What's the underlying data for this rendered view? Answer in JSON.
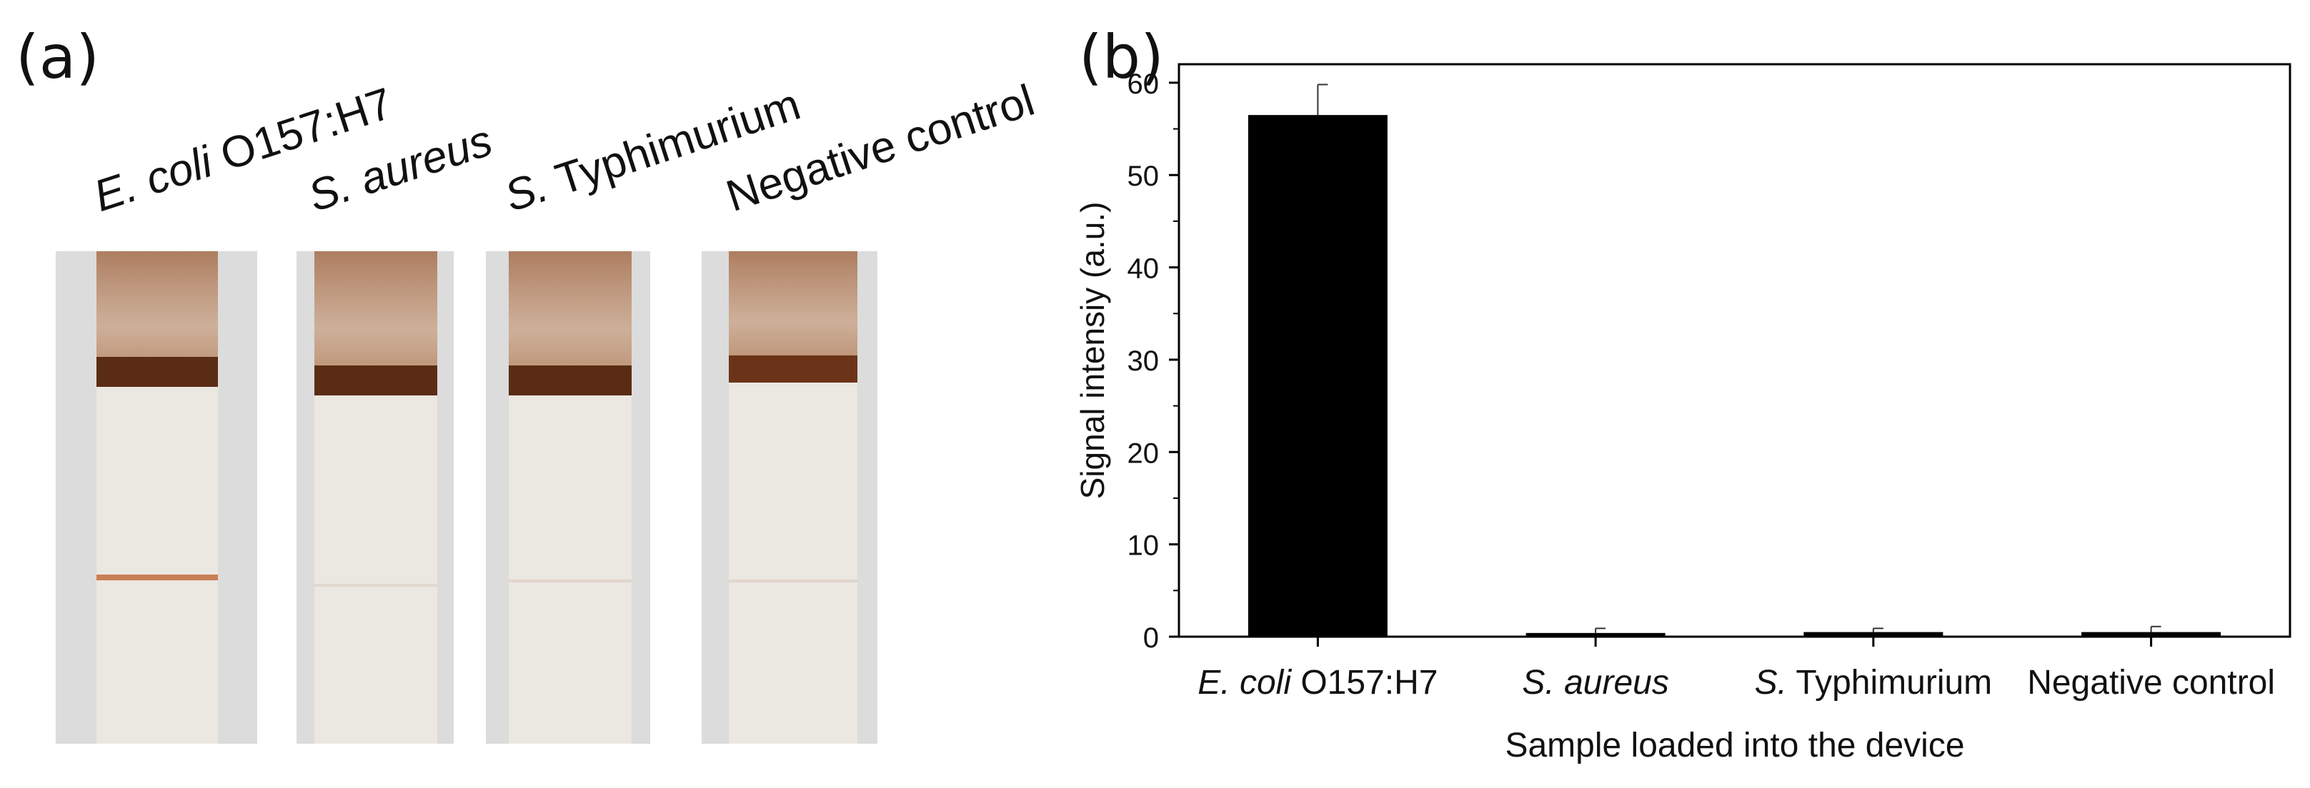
{
  "panels": {
    "a_label": "(a)",
    "b_label": "(b)"
  },
  "strips": {
    "labels": [
      {
        "italic": "E. coli",
        "rest": " O157:H7",
        "has_test_line": true
      },
      {
        "italic": "S. aureus",
        "rest": "",
        "has_test_line": false
      },
      {
        "italic": "S.",
        "rest": " Typhimurium",
        "has_test_line": false
      },
      {
        "italic": "",
        "rest": "Negative control",
        "has_test_line": false
      }
    ]
  },
  "chart_data": {
    "type": "bar",
    "categories": [
      {
        "italic": "E. coli",
        "rest": " O157:H7"
      },
      {
        "italic": "S. aureus",
        "rest": ""
      },
      {
        "italic": "S.",
        "rest": " Typhimurium"
      },
      {
        "italic": "",
        "rest": "Negative control"
      }
    ],
    "values": [
      56.5,
      0.4,
      0.5,
      0.5
    ],
    "errors": [
      3.3,
      0.5,
      0.4,
      0.6
    ],
    "xlabel": "Sample loaded into the device",
    "ylabel": "Signal intensiy (a.u.)",
    "ylim": [
      0,
      62
    ],
    "yticks": [
      0,
      10,
      20,
      30,
      40,
      50,
      60
    ],
    "bar_color": "#000000",
    "grid": false
  }
}
